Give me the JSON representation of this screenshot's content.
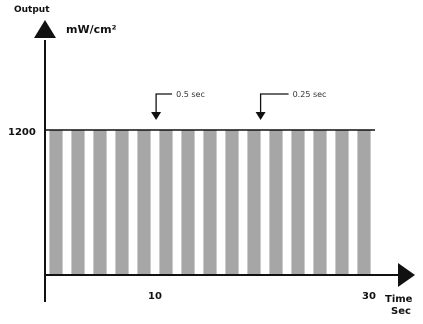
{
  "chart_data": {
    "type": "bar",
    "title": "",
    "ylabel_top": "Output",
    "ylabel_unit": "mW/cm²",
    "xlabel_line1": "Time",
    "xlabel_line2": "Sec",
    "y_tick": "1200",
    "x_ticks": [
      "10",
      "30"
    ],
    "pulse_level": 1200,
    "ylim": [
      0,
      1200
    ],
    "xlim": [
      0,
      30
    ],
    "pulse_starts": [
      0.4,
      2.4,
      4.4,
      6.4,
      8.4,
      10.4,
      12.4,
      14.4,
      16.4,
      18.4,
      20.4,
      22.4,
      24.4,
      26.4,
      28.4
    ],
    "pulse_width": 1.2,
    "annotations": [
      {
        "text": "0.5 sec",
        "x": 10.1
      },
      {
        "text": "0.25 sec",
        "x": 19.6
      }
    ],
    "colors": {
      "pulse": "#a6a6a6",
      "axis": "#111111"
    }
  }
}
